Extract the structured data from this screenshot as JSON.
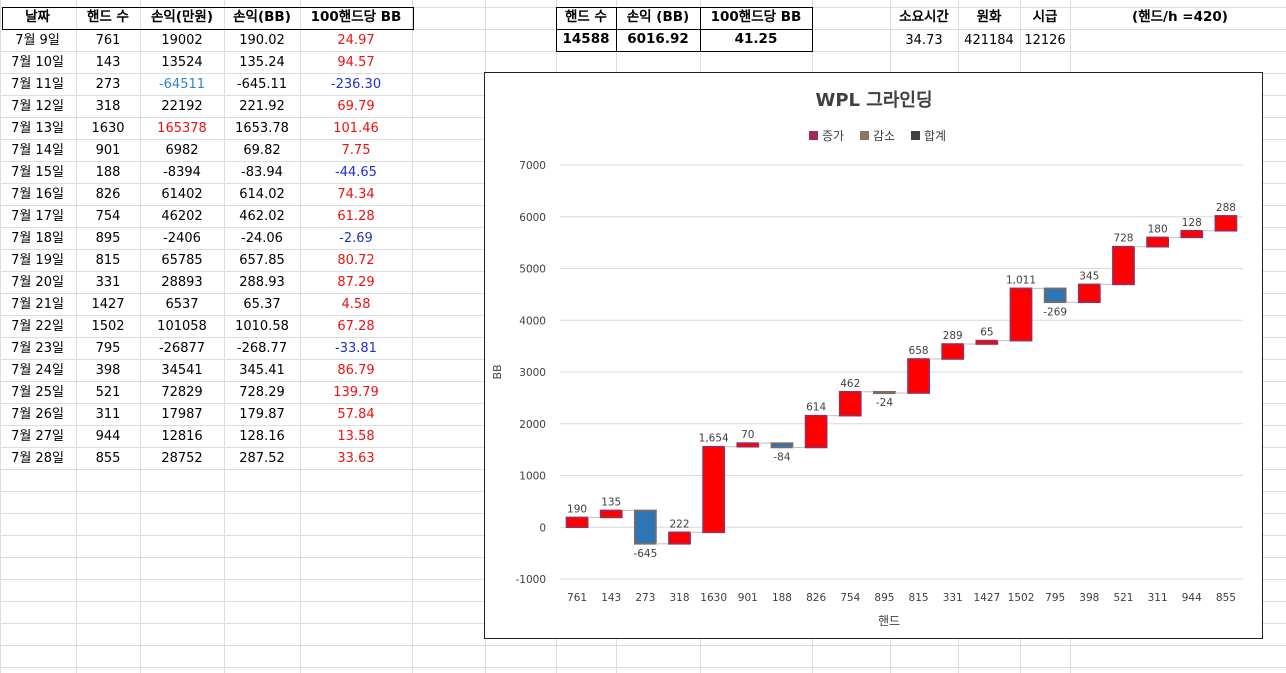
{
  "table": {
    "headers": [
      "날짜",
      "핸드 수",
      "손익(만원)",
      "손익(BB)",
      "100핸드당 BB"
    ],
    "rows": [
      [
        "7월 9일",
        "761",
        "19002",
        "190.02",
        "24.97"
      ],
      [
        "7월 10일",
        "143",
        "13524",
        "135.24",
        "94.57"
      ],
      [
        "7월 11일",
        "273",
        "-64511",
        "-645.11",
        "-236.30"
      ],
      [
        "7월 12일",
        "318",
        "22192",
        "221.92",
        "69.79"
      ],
      [
        "7월 13일",
        "1630",
        "165378",
        "1653.78",
        "101.46"
      ],
      [
        "7월 14일",
        "901",
        "6982",
        "69.82",
        "7.75"
      ],
      [
        "7월 15일",
        "188",
        "-8394",
        "-83.94",
        "-44.65"
      ],
      [
        "7월 16일",
        "826",
        "61402",
        "614.02",
        "74.34"
      ],
      [
        "7월 17일",
        "754",
        "46202",
        "462.02",
        "61.28"
      ],
      [
        "7월 18일",
        "895",
        "-2406",
        "-24.06",
        "-2.69"
      ],
      [
        "7월 19일",
        "815",
        "65785",
        "657.85",
        "80.72"
      ],
      [
        "7월 20일",
        "331",
        "28893",
        "288.93",
        "87.29"
      ],
      [
        "7월 21일",
        "1427",
        "6537",
        "65.37",
        "4.58"
      ],
      [
        "7월 22일",
        "1502",
        "101058",
        "1010.58",
        "67.28"
      ],
      [
        "7월 23일",
        "795",
        "-26877",
        "-268.77",
        "-33.81"
      ],
      [
        "7월 24일",
        "398",
        "34541",
        "345.41",
        "86.79"
      ],
      [
        "7월 25일",
        "521",
        "72829",
        "728.29",
        "139.79"
      ],
      [
        "7월 26일",
        "311",
        "17987",
        "179.87",
        "57.84"
      ],
      [
        "7월 27일",
        "944",
        "12816",
        "128.16",
        "13.58"
      ],
      [
        "7월 28일",
        "855",
        "28752",
        "287.52",
        "33.63"
      ]
    ]
  },
  "summary": {
    "headers": [
      "핸드 수",
      "손익 (BB)",
      "100핸드당 BB"
    ],
    "values": [
      "14588",
      "6016.92",
      "41.25"
    ]
  },
  "stats": {
    "headers": [
      "소요시간",
      "원화",
      "시급"
    ],
    "values": [
      "34.73",
      "421184",
      "12126"
    ],
    "note": "(핸드/h =420)"
  },
  "colors": {
    "increase": "#ff0000",
    "increase_border": "#9e2a5a",
    "decrease": "#2e75b6",
    "decrease_border": "#7f6a5f",
    "total": "#404040",
    "legend_increase": "#9e2a5a",
    "legend_decrease": "#8c7560",
    "text_red": "#ee1111",
    "text_blue": "#1f2fd0"
  },
  "chart_data": {
    "type": "waterfall",
    "title": "WPL 그라인딩",
    "xlabel": "핸드",
    "ylabel": "BB",
    "legend": [
      "증가",
      "감소",
      "합계"
    ],
    "legend_position": "top",
    "categories": [
      "761",
      "143",
      "273",
      "318",
      "1630",
      "901",
      "188",
      "826",
      "754",
      "895",
      "815",
      "331",
      "1427",
      "1502",
      "795",
      "398",
      "521",
      "311",
      "944",
      "855"
    ],
    "values": [
      190.02,
      135.24,
      -645.11,
      221.92,
      1653.78,
      69.82,
      -83.94,
      614.02,
      462.02,
      -24.06,
      657.85,
      288.93,
      65.37,
      1010.58,
      -268.77,
      345.41,
      728.29,
      179.87,
      128.16,
      287.52
    ],
    "data_labels": [
      "190",
      "135",
      "-645",
      "222",
      "1,654",
      "70",
      "-84",
      "614",
      "462",
      "-24",
      "658",
      "289",
      "65",
      "1,011",
      "-269",
      "345",
      "728",
      "180",
      "128",
      "288"
    ],
    "ylim": [
      -1000,
      7000
    ],
    "yticks": [
      "-1000",
      "0",
      "1000",
      "2000",
      "3000",
      "4000",
      "5000",
      "6000",
      "7000"
    ],
    "grid": true
  }
}
